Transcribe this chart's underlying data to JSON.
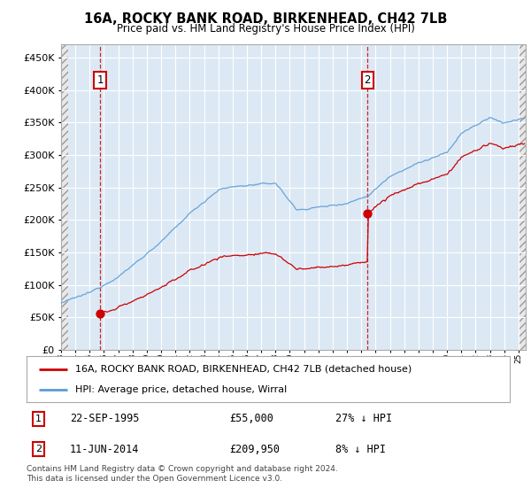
{
  "title": "16A, ROCKY BANK ROAD, BIRKENHEAD, CH42 7LB",
  "subtitle": "Price paid vs. HM Land Registry's House Price Index (HPI)",
  "legend_label_red": "16A, ROCKY BANK ROAD, BIRKENHEAD, CH42 7LB (detached house)",
  "legend_label_blue": "HPI: Average price, detached house, Wirral",
  "sale1_date": "22-SEP-1995",
  "sale1_price": 55000,
  "sale1_pct": "27% ↓ HPI",
  "sale1_year": 1995.72,
  "sale2_date": "11-JUN-2014",
  "sale2_price": 209950,
  "sale2_pct": "8% ↓ HPI",
  "sale2_year": 2014.44,
  "yticks": [
    0,
    50000,
    100000,
    150000,
    200000,
    250000,
    300000,
    350000,
    400000,
    450000
  ],
  "ylim": [
    0,
    470000
  ],
  "xlim_start": 1993.0,
  "xlim_end": 2025.5,
  "plot_bg_color": "#dce9f5",
  "hatch_area_color": "#e8e8e8",
  "grid_color": "#ffffff",
  "red_color": "#cc0000",
  "blue_color": "#5b9bd5",
  "footnote": "Contains HM Land Registry data © Crown copyright and database right 2024.\nThis data is licensed under the Open Government Licence v3.0."
}
